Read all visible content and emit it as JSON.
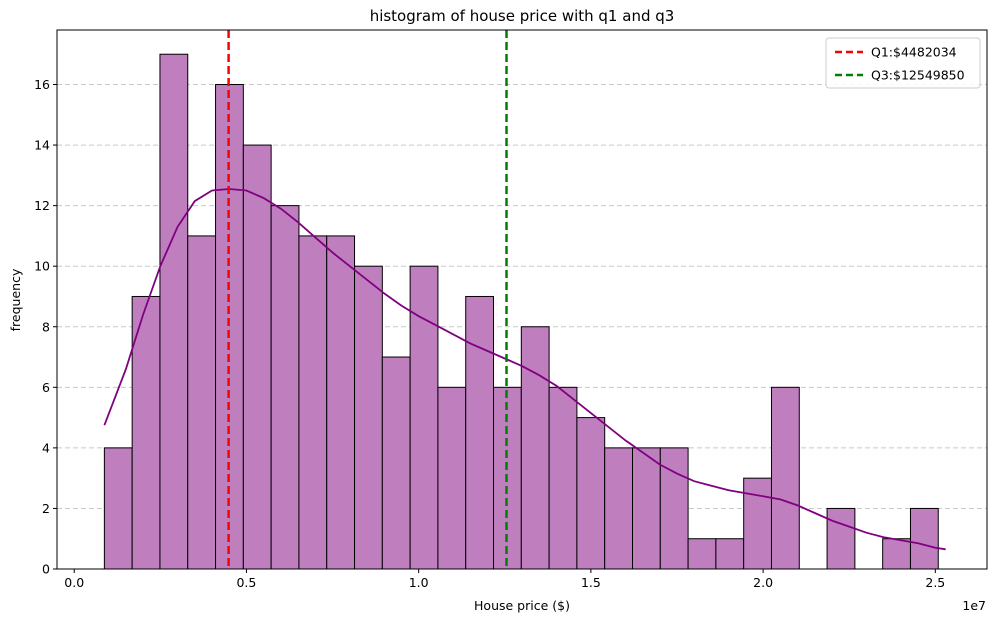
{
  "chart_data": {
    "type": "bar",
    "title": "histogram of house price with q1 and q3",
    "xlabel": "House price ($)",
    "ylabel": "frequency",
    "x_offset_text": "1e7",
    "xlim": [
      -0.05,
      2.65
    ],
    "ylim": [
      0,
      17.8
    ],
    "xticks": [
      0.0,
      0.5,
      1.0,
      1.5,
      2.0,
      2.5
    ],
    "xtick_labels": [
      "0.0",
      "0.5",
      "1.0",
      "1.5",
      "2.0",
      "2.5"
    ],
    "yticks": [
      0,
      2,
      4,
      6,
      8,
      10,
      12,
      14,
      16
    ],
    "ytick_labels": [
      "0",
      "2",
      "4",
      "6",
      "8",
      "10",
      "12",
      "14",
      "16"
    ],
    "grid": "y-dashed",
    "legend_position": "upper right",
    "bin_start": 0.0875,
    "bin_width": 0.0807,
    "counts": [
      4,
      9,
      17,
      11,
      16,
      14,
      12,
      11,
      11,
      10,
      7,
      10,
      6,
      9,
      6,
      8,
      6,
      5,
      4,
      4,
      4,
      1,
      1,
      3,
      6,
      0,
      2,
      0,
      1,
      2
    ],
    "bar_color": "#bf7fbf",
    "bar_edge_color": "#000000",
    "kde": {
      "name": "",
      "color": "#800080",
      "x": [
        0.0875,
        0.15,
        0.2,
        0.25,
        0.3,
        0.35,
        0.4,
        0.45,
        0.5,
        0.55,
        0.6,
        0.65,
        0.7,
        0.75,
        0.8,
        0.85,
        0.9,
        0.95,
        1.0,
        1.05,
        1.1,
        1.15,
        1.2,
        1.25,
        1.3,
        1.35,
        1.4,
        1.45,
        1.5,
        1.55,
        1.6,
        1.65,
        1.7,
        1.75,
        1.8,
        1.85,
        1.9,
        1.95,
        2.0,
        2.05,
        2.1,
        2.15,
        2.2,
        2.25,
        2.3,
        2.35,
        2.4,
        2.45,
        2.5,
        2.53
      ],
      "y": [
        4.75,
        6.6,
        8.4,
        10.0,
        11.3,
        12.15,
        12.5,
        12.55,
        12.5,
        12.25,
        11.9,
        11.45,
        10.95,
        10.45,
        10.0,
        9.55,
        9.1,
        8.7,
        8.35,
        8.05,
        7.75,
        7.45,
        7.2,
        6.95,
        6.7,
        6.4,
        6.05,
        5.6,
        5.15,
        4.7,
        4.25,
        3.85,
        3.45,
        3.15,
        2.9,
        2.75,
        2.6,
        2.5,
        2.4,
        2.3,
        2.1,
        1.85,
        1.6,
        1.4,
        1.2,
        1.05,
        0.95,
        0.85,
        0.7,
        0.65
      ]
    },
    "reference_lines": [
      {
        "name": "Q1:$4482034",
        "x": 0.4482034,
        "color": "#ff0000"
      },
      {
        "name": "Q3:$12549850",
        "x": 1.254985,
        "color": "#008000"
      }
    ]
  }
}
